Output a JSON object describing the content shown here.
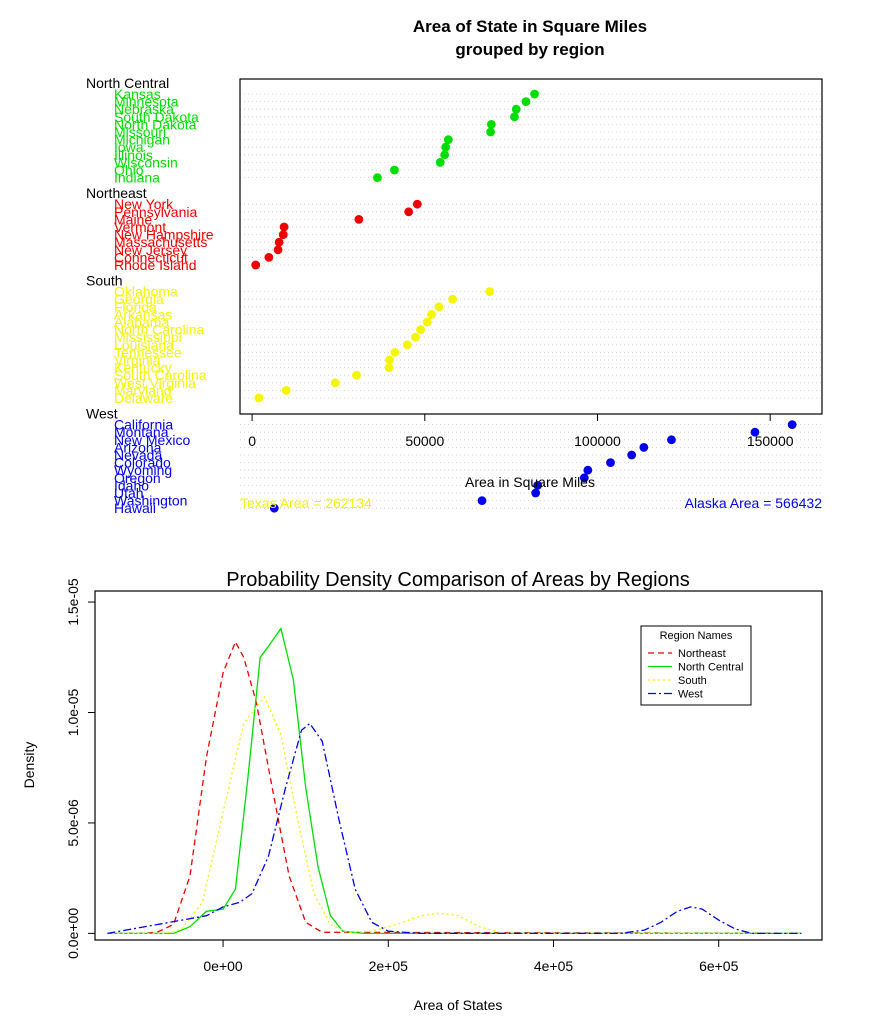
{
  "colors": {
    "North Central": "#00dd00",
    "Northeast": "#ee0000",
    "South": "#f5f500",
    "West": "#0000ee",
    "grid": "#c8c8c8",
    "axis": "#000000"
  },
  "chart_data": [
    {
      "type": "dotchart",
      "title_line1": "Area of State in Square Miles",
      "title_line2": "grouped by region",
      "xlabel": "Area in Square Miles",
      "xlim": [
        -3500,
        165000
      ],
      "xticks": [
        0,
        50000,
        100000,
        150000
      ],
      "xtick_labels": [
        "0",
        "50000",
        "100000",
        "150000"
      ],
      "groups": [
        {
          "name": "North Central",
          "states": [
            {
              "name": "Indiana",
              "value": 36291
            },
            {
              "name": "Ohio",
              "value": 41222
            },
            {
              "name": "Wisconsin",
              "value": 54464
            },
            {
              "name": "Illinois",
              "value": 55748
            },
            {
              "name": "Iowa",
              "value": 56043
            },
            {
              "name": "Michigan",
              "value": 56817
            },
            {
              "name": "Missouri",
              "value": 69046
            },
            {
              "name": "North Dakota",
              "value": 69273
            },
            {
              "name": "South Dakota",
              "value": 75955
            },
            {
              "name": "Nebraska",
              "value": 76483
            },
            {
              "name": "Minnesota",
              "value": 79289
            },
            {
              "name": "Kansas",
              "value": 81787
            }
          ]
        },
        {
          "name": "Northeast",
          "states": [
            {
              "name": "Rhode Island",
              "value": 1049
            },
            {
              "name": "Connecticut",
              "value": 4862
            },
            {
              "name": "New Jersey",
              "value": 7521
            },
            {
              "name": "Massachusetts",
              "value": 7826
            },
            {
              "name": "New Hampshire",
              "value": 9027
            },
            {
              "name": "Vermont",
              "value": 9267
            },
            {
              "name": "Maine",
              "value": 30920
            },
            {
              "name": "Pennsylvania",
              "value": 45333
            },
            {
              "name": "New York",
              "value": 47831
            }
          ]
        },
        {
          "name": "South",
          "states": [
            {
              "name": "Delaware",
              "value": 1982
            },
            {
              "name": "Maryland",
              "value": 9891
            },
            {
              "name": "West Virginia",
              "value": 24070
            },
            {
              "name": "South Carolina",
              "value": 30225
            },
            {
              "name": "Kentucky",
              "value": 39650
            },
            {
              "name": "Virginia",
              "value": 39780
            },
            {
              "name": "Tennessee",
              "value": 41328
            },
            {
              "name": "Louisiana",
              "value": 44930
            },
            {
              "name": "Mississippi",
              "value": 47296
            },
            {
              "name": "North Carolina",
              "value": 48798
            },
            {
              "name": "Alabama",
              "value": 50708
            },
            {
              "name": "Arkansas",
              "value": 51945
            },
            {
              "name": "Florida",
              "value": 54090
            },
            {
              "name": "Georgia",
              "value": 58073
            },
            {
              "name": "Oklahoma",
              "value": 68782
            }
          ]
        },
        {
          "name": "West",
          "states": [
            {
              "name": "Hawaii",
              "value": 6425
            },
            {
              "name": "Washington",
              "value": 66570
            },
            {
              "name": "Idaho",
              "value": 82677
            },
            {
              "name": "Utah",
              "value": 82096
            },
            {
              "name": "Oregon",
              "value": 96184
            },
            {
              "name": "Wyoming",
              "value": 97203
            },
            {
              "name": "Colorado",
              "value": 103766
            },
            {
              "name": "Nevada",
              "value": 109889
            },
            {
              "name": "Arizona",
              "value": 113417
            },
            {
              "name": "New Mexico",
              "value": 121412
            },
            {
              "name": "Montana",
              "value": 145587
            },
            {
              "name": "California",
              "value": 156361
            }
          ]
        }
      ],
      "annotations": [
        {
          "text": "Texas Area = 262134",
          "region": "South"
        },
        {
          "text": "Alaska Area =  566432",
          "region": "West"
        }
      ]
    },
    {
      "type": "line",
      "title": "Probability Density Comparison of Areas by Regions",
      "xlabel": "Area of States",
      "ylabel": "Density",
      "xlim": [
        -155000,
        725000
      ],
      "ylim": [
        -3e-07,
        1.55e-05
      ],
      "xticks": [
        0,
        200000,
        400000,
        600000
      ],
      "xtick_labels": [
        "0e+00",
        "2e+05",
        "4e+05",
        "6e+05"
      ],
      "yticks": [
        0,
        5e-06,
        1e-05,
        1.5e-05
      ],
      "ytick_labels": [
        "0.0e+00",
        "5.0e-06",
        "1.0e-05",
        "1.5e-05"
      ],
      "legend": {
        "title": "Region Names",
        "position": "top-right"
      },
      "series": [
        {
          "name": "Northeast",
          "dash": "6,4",
          "x": [
            -140000,
            -100000,
            -80000,
            -60000,
            -40000,
            -20000,
            0,
            15000,
            25000,
            40000,
            60000,
            80000,
            100000,
            120000,
            700000
          ],
          "y": [
            0,
            0,
            5e-08,
            4e-07,
            2.6e-06,
            8e-06,
            1.18e-05,
            1.32e-05,
            1.25e-05,
            1.05e-05,
            6.5e-06,
            2.6e-06,
            5e-07,
            5e-08,
            0
          ]
        },
        {
          "name": "North Central",
          "dash": "",
          "x": [
            -140000,
            -60000,
            -40000,
            -20000,
            0,
            15000,
            30000,
            45000,
            55000,
            70000,
            85000,
            100000,
            115000,
            130000,
            145000,
            170000,
            700000
          ],
          "y": [
            0,
            0,
            3e-07,
            1e-06,
            1.1e-06,
            2e-06,
            7e-06,
            1.25e-05,
            1.3e-05,
            1.38e-05,
            1.15e-05,
            6.6e-06,
            3e-06,
            8e-07,
            1e-07,
            0,
            0
          ]
        },
        {
          "name": "South",
          "dash": "2,3",
          "x": [
            -140000,
            -70000,
            -50000,
            -25000,
            0,
            25000,
            50000,
            70000,
            90000,
            110000,
            130000,
            150000,
            180000,
            210000,
            240000,
            262000,
            285000,
            310000,
            340000,
            700000
          ],
          "y": [
            0,
            0,
            2e-07,
            1.4e-06,
            5.5e-06,
            9.5e-06,
            1.07e-05,
            9e-06,
            5.2e-06,
            1.8e-06,
            4e-07,
            5e-08,
            1e-07,
            4e-07,
            8e-07,
            9.2e-07,
            8e-07,
            3e-07,
            0,
            0
          ]
        },
        {
          "name": "West",
          "dash": "8,3,2,3",
          "x": [
            -140000,
            -20000,
            0,
            20000,
            35000,
            55000,
            75000,
            95000,
            105000,
            120000,
            140000,
            160000,
            180000,
            200000,
            240000,
            480000,
            510000,
            530000,
            550000,
            566000,
            580000,
            600000,
            620000,
            640000,
            700000
          ],
          "y": [
            0,
            8e-07,
            1.2e-06,
            1.4e-06,
            1.8e-06,
            3.5e-06,
            6.5e-06,
            9.2e-06,
            9.5e-06,
            8.7e-06,
            5.2e-06,
            2e-06,
            5e-07,
            1e-07,
            0,
            0,
            1.5e-07,
            5e-07,
            1e-06,
            1.2e-06,
            1.1e-06,
            6e-07,
            2e-07,
            0,
            0
          ]
        }
      ]
    }
  ]
}
